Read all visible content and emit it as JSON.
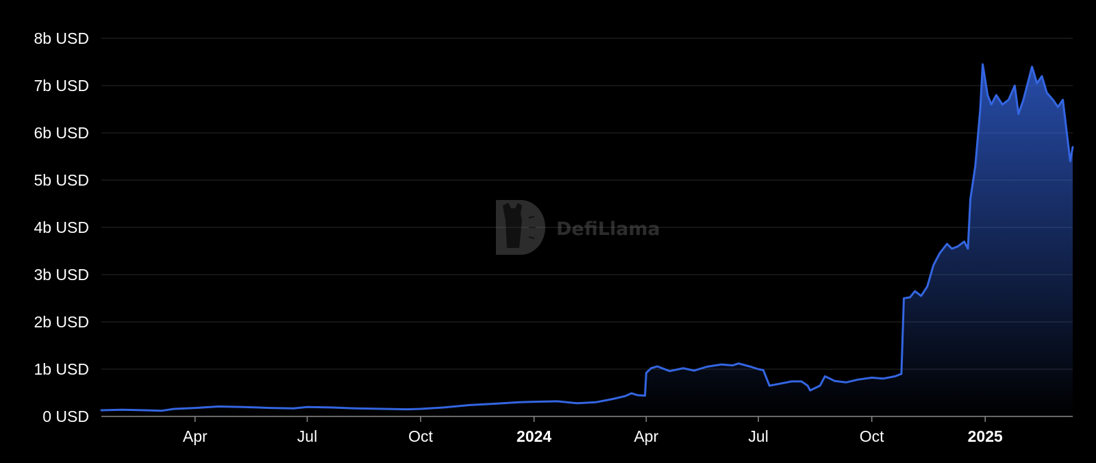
{
  "chart_data": {
    "type": "area",
    "x_axis": "date",
    "y_unit": "USD",
    "xlim": [
      "2023-01-15",
      "2025-03-13"
    ],
    "ylim": [
      0,
      8000000000
    ],
    "grid": true,
    "line_color": "#3466e2",
    "fill_color": "#3466e2",
    "background": "#000000",
    "y_ticks": [
      {
        "value": 0,
        "label": "0 USD"
      },
      {
        "value": 1000000000,
        "label": "1b USD"
      },
      {
        "value": 2000000000,
        "label": "2b USD"
      },
      {
        "value": 3000000000,
        "label": "3b USD"
      },
      {
        "value": 4000000000,
        "label": "4b USD"
      },
      {
        "value": 5000000000,
        "label": "5b USD"
      },
      {
        "value": 6000000000,
        "label": "6b USD"
      },
      {
        "value": 7000000000,
        "label": "7b USD"
      },
      {
        "value": 8000000000,
        "label": "8b USD"
      }
    ],
    "x_ticks": [
      {
        "date": "2023-04-01",
        "label": "Apr",
        "bold": false
      },
      {
        "date": "2023-07-01",
        "label": "Jul",
        "bold": false
      },
      {
        "date": "2023-10-01",
        "label": "Oct",
        "bold": false
      },
      {
        "date": "2024-01-01",
        "label": "2024",
        "bold": true
      },
      {
        "date": "2024-04-01",
        "label": "Apr",
        "bold": false
      },
      {
        "date": "2024-07-01",
        "label": "Jul",
        "bold": false
      },
      {
        "date": "2024-10-01",
        "label": "Oct",
        "bold": false
      },
      {
        "date": "2025-01-01",
        "label": "2025",
        "bold": true
      }
    ],
    "series": [
      {
        "points": [
          [
            "2023-01-15",
            0.13
          ],
          [
            "2023-02-01",
            0.14
          ],
          [
            "2023-02-20",
            0.13
          ],
          [
            "2023-03-05",
            0.12
          ],
          [
            "2023-03-15",
            0.16
          ],
          [
            "2023-04-01",
            0.18
          ],
          [
            "2023-04-20",
            0.21
          ],
          [
            "2023-05-10",
            0.2
          ],
          [
            "2023-06-01",
            0.18
          ],
          [
            "2023-06-20",
            0.17
          ],
          [
            "2023-07-01",
            0.2
          ],
          [
            "2023-07-20",
            0.19
          ],
          [
            "2023-08-10",
            0.17
          ],
          [
            "2023-09-01",
            0.16
          ],
          [
            "2023-09-20",
            0.15
          ],
          [
            "2023-10-01",
            0.16
          ],
          [
            "2023-10-20",
            0.19
          ],
          [
            "2023-11-10",
            0.24
          ],
          [
            "2023-12-01",
            0.27
          ],
          [
            "2023-12-20",
            0.3
          ],
          [
            "2024-01-01",
            0.31
          ],
          [
            "2024-01-20",
            0.32
          ],
          [
            "2024-02-05",
            0.28
          ],
          [
            "2024-02-20",
            0.3
          ],
          [
            "2024-03-05",
            0.37
          ],
          [
            "2024-03-15",
            0.43
          ],
          [
            "2024-03-20",
            0.49
          ],
          [
            "2024-03-25",
            0.45
          ],
          [
            "2024-03-31",
            0.44
          ],
          [
            "2024-04-01",
            0.92
          ],
          [
            "2024-04-05",
            1.02
          ],
          [
            "2024-04-10",
            1.06
          ],
          [
            "2024-04-20",
            0.96
          ],
          [
            "2024-05-01",
            1.02
          ],
          [
            "2024-05-10",
            0.97
          ],
          [
            "2024-05-20",
            1.05
          ],
          [
            "2024-06-01",
            1.1
          ],
          [
            "2024-06-10",
            1.08
          ],
          [
            "2024-06-15",
            1.12
          ],
          [
            "2024-06-25",
            1.05
          ],
          [
            "2024-07-01",
            1.0
          ],
          [
            "2024-07-05",
            0.98
          ],
          [
            "2024-07-10",
            0.65
          ],
          [
            "2024-07-20",
            0.7
          ],
          [
            "2024-07-28",
            0.74
          ],
          [
            "2024-08-05",
            0.74
          ],
          [
            "2024-08-10",
            0.65
          ],
          [
            "2024-08-12",
            0.55
          ],
          [
            "2024-08-20",
            0.65
          ],
          [
            "2024-08-24",
            0.85
          ],
          [
            "2024-09-01",
            0.75
          ],
          [
            "2024-09-10",
            0.72
          ],
          [
            "2024-09-20",
            0.78
          ],
          [
            "2024-10-01",
            0.82
          ],
          [
            "2024-10-10",
            0.8
          ],
          [
            "2024-10-20",
            0.85
          ],
          [
            "2024-10-25",
            0.9
          ],
          [
            "2024-10-27",
            2.5
          ],
          [
            "2024-11-01",
            2.52
          ],
          [
            "2024-11-05",
            2.65
          ],
          [
            "2024-11-10",
            2.55
          ],
          [
            "2024-11-15",
            2.75
          ],
          [
            "2024-11-20",
            3.2
          ],
          [
            "2024-11-25",
            3.45
          ],
          [
            "2024-12-01",
            3.65
          ],
          [
            "2024-12-05",
            3.55
          ],
          [
            "2024-12-10",
            3.6
          ],
          [
            "2024-12-15",
            3.7
          ],
          [
            "2024-12-18",
            3.55
          ],
          [
            "2024-12-20",
            4.6
          ],
          [
            "2024-12-24",
            5.3
          ],
          [
            "2024-12-28",
            6.5
          ],
          [
            "2024-12-30",
            7.45
          ],
          [
            "2025-01-03",
            6.8
          ],
          [
            "2025-01-06",
            6.6
          ],
          [
            "2025-01-10",
            6.8
          ],
          [
            "2025-01-15",
            6.6
          ],
          [
            "2025-01-20",
            6.7
          ],
          [
            "2025-01-25",
            7.0
          ],
          [
            "2025-01-28",
            6.4
          ],
          [
            "2025-02-01",
            6.7
          ],
          [
            "2025-02-05",
            7.1
          ],
          [
            "2025-02-08",
            7.4
          ],
          [
            "2025-02-12",
            7.05
          ],
          [
            "2025-02-16",
            7.2
          ],
          [
            "2025-02-20",
            6.85
          ],
          [
            "2025-02-25",
            6.7
          ],
          [
            "2025-03-01",
            6.55
          ],
          [
            "2025-03-05",
            6.7
          ],
          [
            "2025-03-08",
            6.05
          ],
          [
            "2025-03-11",
            5.4
          ],
          [
            "2025-03-13",
            5.7
          ]
        ]
      }
    ]
  },
  "watermark": {
    "text": "DefiLlama",
    "icon": "llama-logo-icon"
  }
}
